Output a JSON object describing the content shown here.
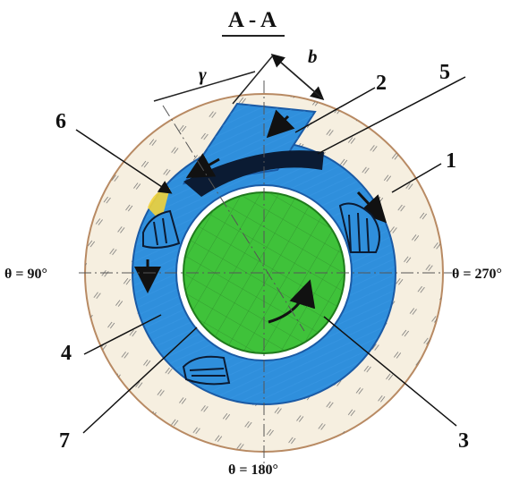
{
  "section_title": "A - A",
  "dimensions": {
    "angle_symbol": "γ",
    "width_symbol": "b"
  },
  "angle_labels": {
    "left": "θ = 90°",
    "right": "θ = 270°",
    "bottom": "θ = 180°"
  },
  "part_labels": [
    "1",
    "2",
    "3",
    "4",
    "5",
    "6",
    "7"
  ],
  "colors": {
    "outer_ring": "#f3ead6",
    "outer_outline": "#b88a63",
    "channel_blue": "#2f8fdc",
    "shaft_green": "#3fc23a",
    "dark_flow": "#0b1b33"
  }
}
